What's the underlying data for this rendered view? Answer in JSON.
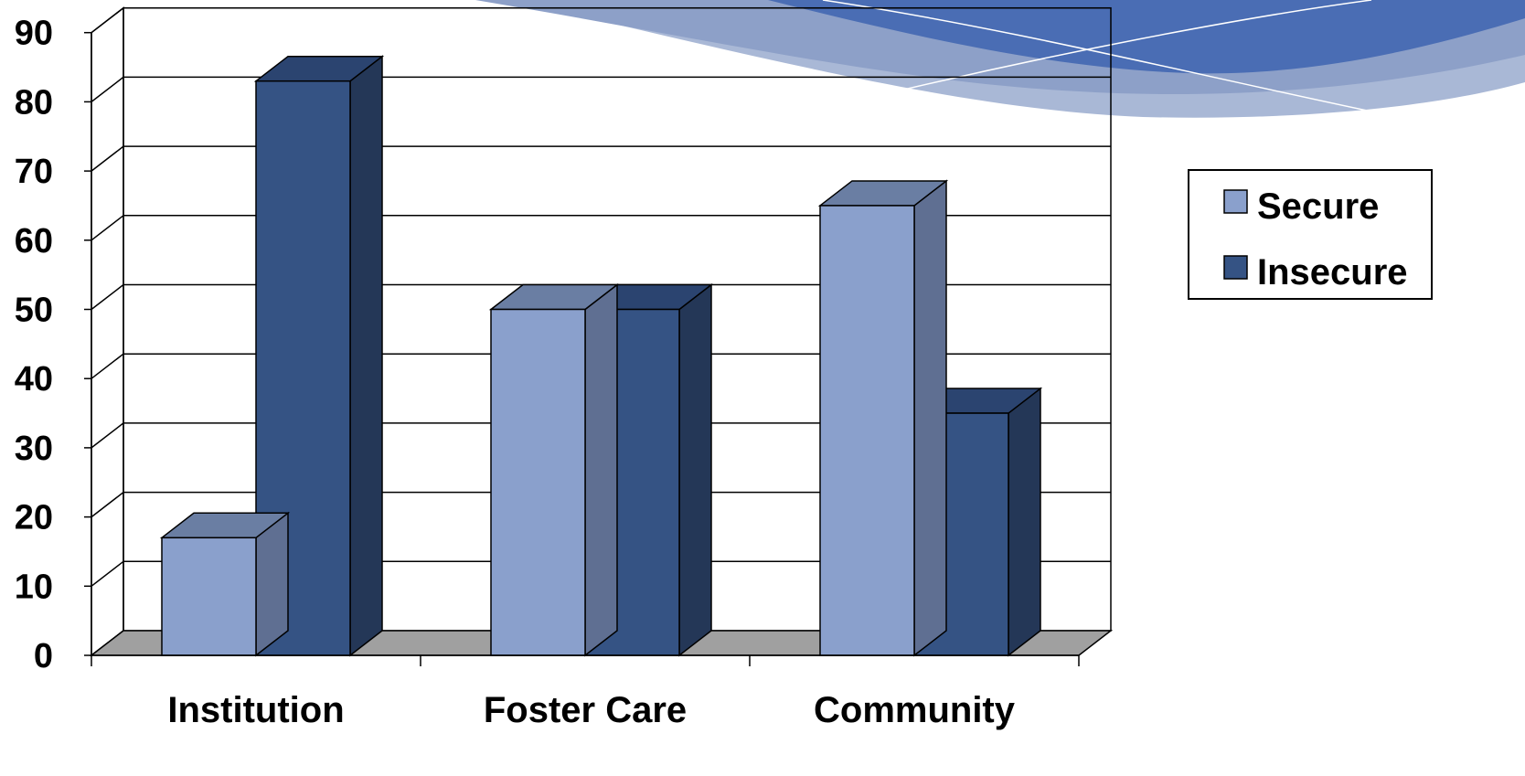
{
  "chart_data": {
    "type": "bar",
    "title": "",
    "xlabel": "",
    "ylabel": "",
    "categories": [
      "Institution",
      "Foster Care",
      "Community"
    ],
    "series": [
      {
        "name": "Secure",
        "values": [
          17,
          50,
          65
        ]
      },
      {
        "name": "Insecure",
        "values": [
          83,
          50,
          35
        ]
      }
    ],
    "ylim": [
      0,
      90
    ],
    "yticks": [
      0,
      10,
      20,
      30,
      40,
      50,
      60,
      70,
      80,
      90
    ],
    "grid": true,
    "style": "3d-clustered",
    "legend": {
      "position": "right"
    },
    "colors": {
      "series": [
        {
          "front": "#8aa0cc",
          "top": "#6a7ea3",
          "side": "#5f6f92"
        },
        {
          "front": "#355384",
          "top": "#2b4470",
          "side": "#243757"
        }
      ],
      "floor": "#a0a0a0",
      "banner": [
        "#4a6db4",
        "#8da0c8",
        "#a9b8d6"
      ]
    }
  }
}
